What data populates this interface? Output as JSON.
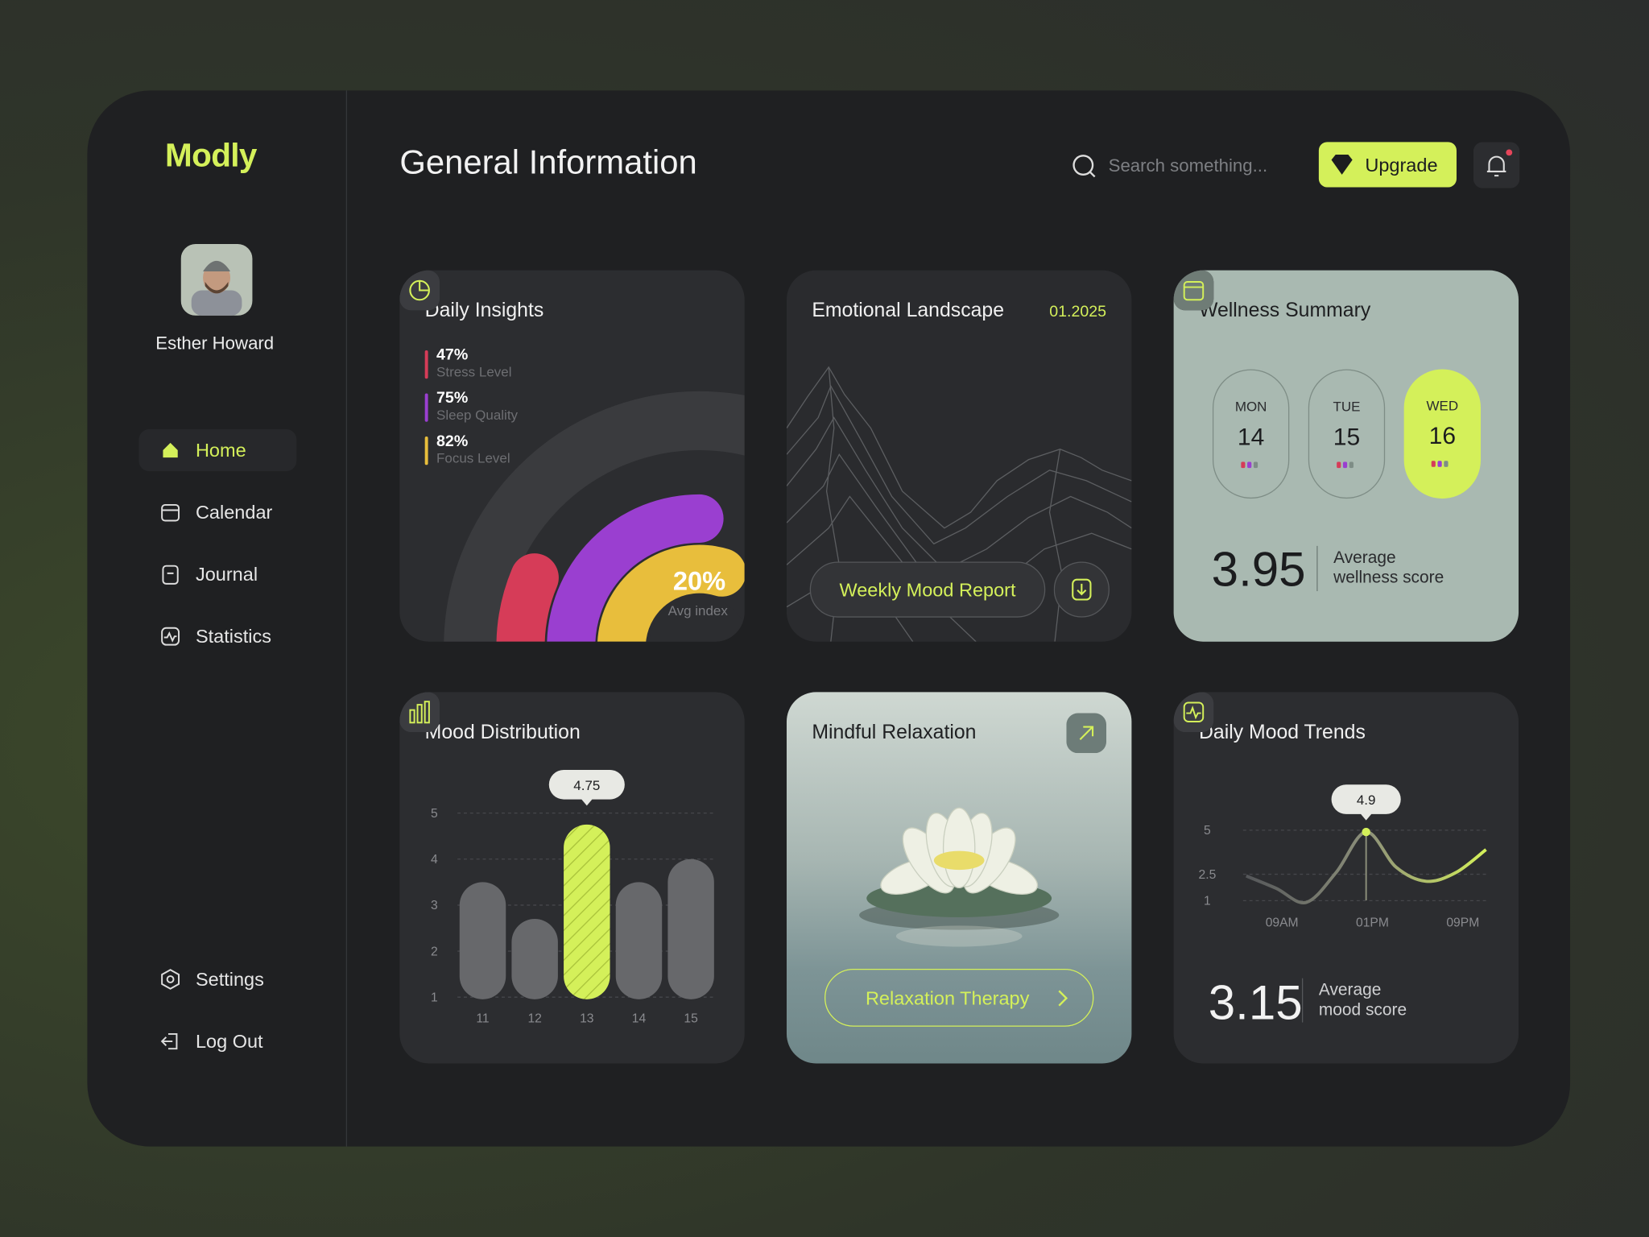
{
  "brand": "Modly",
  "user": {
    "name": "Esther Howard"
  },
  "nav": {
    "main": [
      "Home",
      "Calendar",
      "Journal",
      "Statistics"
    ],
    "active": 0,
    "bottom": [
      "Settings",
      "Log Out"
    ]
  },
  "header": {
    "title": "General Information",
    "search_placeholder": "Search something...",
    "upgrade": "Upgrade"
  },
  "daily_insights": {
    "title": "Daily Insights",
    "metrics": [
      {
        "value": 47,
        "label": "47%",
        "name": "Stress Level",
        "color": "#d63c58"
      },
      {
        "value": 75,
        "label": "75%",
        "name": "Sleep Quality",
        "color": "#9a3fd0"
      },
      {
        "value": 82,
        "label": "82%",
        "name": "Focus Level",
        "color": "#e8be3c"
      }
    ],
    "average": {
      "label": "20%",
      "caption": "Avg index"
    }
  },
  "emotional_landscape": {
    "title": "Emotional Landscape",
    "date": "01.2025",
    "button": "Weekly Mood Report"
  },
  "wellness_summary": {
    "title": "Wellness Summary",
    "days": [
      {
        "day": "MON",
        "date": "14"
      },
      {
        "day": "TUE",
        "date": "15"
      },
      {
        "day": "WED",
        "date": "16"
      }
    ],
    "selected": 2,
    "score": "3.95",
    "caption": "Average wellness score"
  },
  "mood_distribution": {
    "type": "bar",
    "title": "Mood Distribution",
    "categories": [
      "11",
      "12",
      "13",
      "14",
      "15"
    ],
    "values": [
      3.5,
      2.7,
      4.75,
      3.5,
      4.0
    ],
    "ylim": [
      1,
      5
    ],
    "yticks": [
      1,
      2,
      3,
      4,
      5
    ],
    "highlight": 2,
    "color": "#67686b",
    "highlight_color": "#d4f05a"
  },
  "mindful_relaxation": {
    "title": "Mindful Relaxation",
    "button": "Relaxation Therapy"
  },
  "daily_mood_trends": {
    "type": "line",
    "title": "Daily Mood Trends",
    "values": [
      2.4,
      1.7,
      0.9,
      2.6,
      4.9,
      2.9,
      2.1,
      2.6,
      3.9
    ],
    "ylim": [
      0,
      6
    ],
    "yticks": [
      1,
      2.5,
      5
    ],
    "xlabels": [
      "09AM",
      "01PM",
      "09PM"
    ],
    "peak": 4,
    "score": "3.15",
    "caption": "Average mood score"
  }
}
